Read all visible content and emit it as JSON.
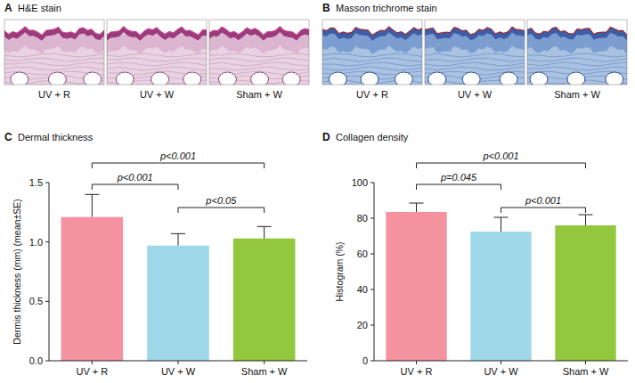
{
  "images": [
    {
      "panel": "A",
      "title": "H&E stain",
      "labels": [
        "UV + R",
        "UV + W",
        "Sham + W"
      ]
    },
    {
      "panel": "B",
      "title": "Masson trichrome stain",
      "labels": [
        "UV + R",
        "UV + W",
        "Sham + W"
      ]
    }
  ],
  "chart_data": [
    {
      "type": "bar",
      "panel": "C",
      "title": "Dermal thickness",
      "y_label": "Dermis thickness (mm) (mean±SE)",
      "categories": [
        "UV + R",
        "UV + W",
        "Sham + W"
      ],
      "values": [
        1.21,
        0.97,
        1.03
      ],
      "errors": [
        0.19,
        0.1,
        0.1
      ],
      "colors": [
        "#f4939f",
        "#9fd8e8",
        "#93c83e"
      ],
      "ylim": [
        0,
        1.5
      ],
      "yticks": [
        {
          "value": 0,
          "label": "0.0"
        },
        {
          "value": 0.5,
          "label": "0.5"
        },
        {
          "value": 1,
          "label": "1.0"
        },
        {
          "value": 1.5,
          "label": "1.5"
        }
      ],
      "grid": false,
      "comparisons": [
        {
          "from": 0,
          "to": 2,
          "label": "p<0.001"
        },
        {
          "from": 0,
          "to": 1,
          "label": "p<0.001"
        },
        {
          "from": 1,
          "to": 2,
          "label": "p<0.05"
        }
      ]
    },
    {
      "type": "bar",
      "panel": "D",
      "title": "Collagen density",
      "y_label": "Histogram (%)",
      "categories": [
        "UV + R",
        "UV + W",
        "Sham + W"
      ],
      "values": [
        83.5,
        72.5,
        76
      ],
      "errors": [
        5,
        8,
        6
      ],
      "colors": [
        "#f4939f",
        "#9fd8e8",
        "#93c83e"
      ],
      "ylim": [
        0,
        100
      ],
      "yticks": [
        0,
        20,
        40,
        60,
        80,
        100
      ],
      "grid": false,
      "comparisons": [
        {
          "from": 0,
          "to": 2,
          "label": "p<0.001"
        },
        {
          "from": 0,
          "to": 1,
          "label": "p=0.045"
        },
        {
          "from": 1,
          "to": 2,
          "label": "p<0.001"
        }
      ]
    }
  ]
}
